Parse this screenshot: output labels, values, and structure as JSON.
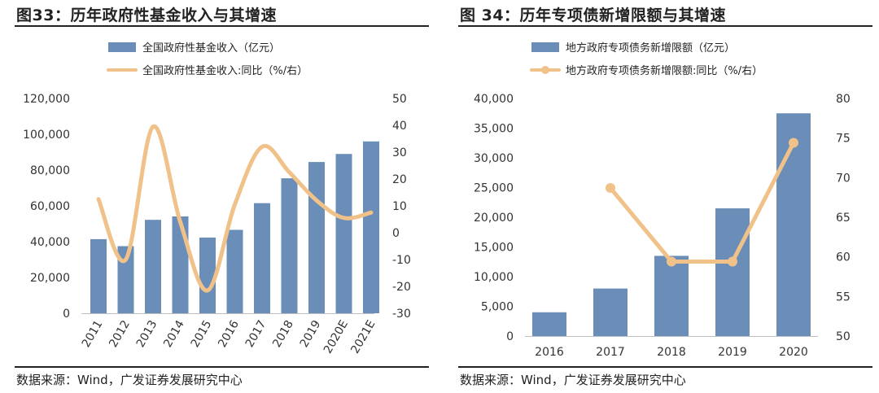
{
  "source_text": "数据来源：Wind，广发证券发展研究中心",
  "chart_data": [
    {
      "type": "bar+line",
      "title": "图33：历年政府性基金收入与其增速",
      "categories": [
        "2011",
        "2012",
        "2013",
        "2014",
        "2015",
        "2016",
        "2017",
        "2018",
        "2019",
        "2020E",
        "2021E"
      ],
      "series": [
        {
          "name": "全国政府性基金收入（亿元）",
          "kind": "bar",
          "axis": "left",
          "color": "#6a8eb7",
          "values": [
            41400,
            37500,
            52200,
            54100,
            42300,
            46600,
            61500,
            75400,
            84500,
            89000,
            96000
          ]
        },
        {
          "name": "全国政府性基金收入:同比（%/右）",
          "kind": "line",
          "axis": "right",
          "color": "#f1c18a",
          "values": [
            12.5,
            -10,
            39.5,
            4,
            -21.5,
            10.5,
            32,
            22.5,
            12,
            5.5,
            7.5
          ]
        }
      ],
      "left_axis": {
        "min": 0,
        "max": 120000,
        "ticks": [
          0,
          20000,
          40000,
          60000,
          80000,
          100000,
          120000
        ],
        "tick_labels": [
          "0",
          "20,000",
          "40,000",
          "60,000",
          "80,000",
          "100,000",
          "120,000"
        ]
      },
      "right_axis": {
        "min": -30,
        "max": 50,
        "ticks": [
          -30,
          -20,
          -10,
          0,
          10,
          20,
          30,
          40,
          50
        ],
        "tick_labels": [
          "-30",
          "-20",
          "-10",
          "0",
          "10",
          "20",
          "30",
          "40",
          "50"
        ]
      },
      "grid": false,
      "legend_position": "top-left",
      "line_style": "smooth",
      "line_markers": false,
      "x_labels_rotated": true
    },
    {
      "type": "bar+line",
      "title": "图 34：历年专项债新增限额与其增速",
      "categories": [
        "2016",
        "2017",
        "2018",
        "2019",
        "2020"
      ],
      "series": [
        {
          "name": "地方政府专项债务新增限额（亿元）",
          "kind": "bar",
          "axis": "left",
          "color": "#6a8eb7",
          "values": [
            4000,
            8000,
            13500,
            21500,
            37500
          ]
        },
        {
          "name": "地方政府专项债务新增限额:同比（%/右）",
          "kind": "line",
          "axis": "right",
          "color": "#f1c18a",
          "values": [
            null,
            68.7,
            59.4,
            59.4,
            74.4
          ]
        }
      ],
      "left_axis": {
        "min": 0,
        "max": 40000,
        "ticks": [
          0,
          5000,
          10000,
          15000,
          20000,
          25000,
          30000,
          35000,
          40000
        ],
        "tick_labels": [
          "0",
          "5,000",
          "10,000",
          "15,000",
          "20,000",
          "25,000",
          "30,000",
          "35,000",
          "40,000"
        ]
      },
      "right_axis": {
        "min": 50,
        "max": 80,
        "ticks": [
          50,
          55,
          60,
          65,
          70,
          75,
          80
        ],
        "tick_labels": [
          "50",
          "55",
          "60",
          "65",
          "70",
          "75",
          "80"
        ]
      },
      "grid": false,
      "legend_position": "top-left",
      "line_style": "straight",
      "line_markers": true,
      "x_labels_rotated": false
    }
  ]
}
